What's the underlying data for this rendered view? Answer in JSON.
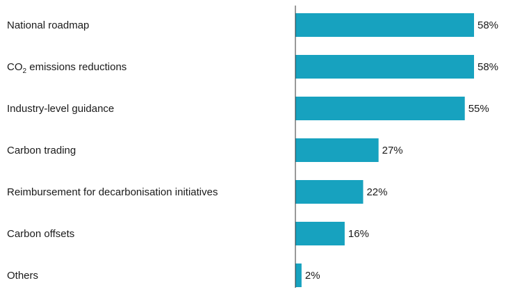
{
  "chart_data": {
    "type": "bar",
    "orientation": "horizontal",
    "categories": [
      "National roadmap",
      "CO2 emissions reductions",
      "Industry-level guidance",
      "Carbon trading",
      "Reimbursement for decarbonisation initiatives",
      "Carbon offsets",
      "Others"
    ],
    "values": [
      58,
      58,
      55,
      27,
      22,
      16,
      2
    ],
    "value_labels": [
      "58%",
      "58%",
      "55%",
      "27%",
      "22%",
      "16%",
      "2%"
    ],
    "unit": "%",
    "xlim": [
      0,
      58
    ],
    "bar_color": "#17a2bf",
    "grid": false,
    "legend": "none"
  }
}
